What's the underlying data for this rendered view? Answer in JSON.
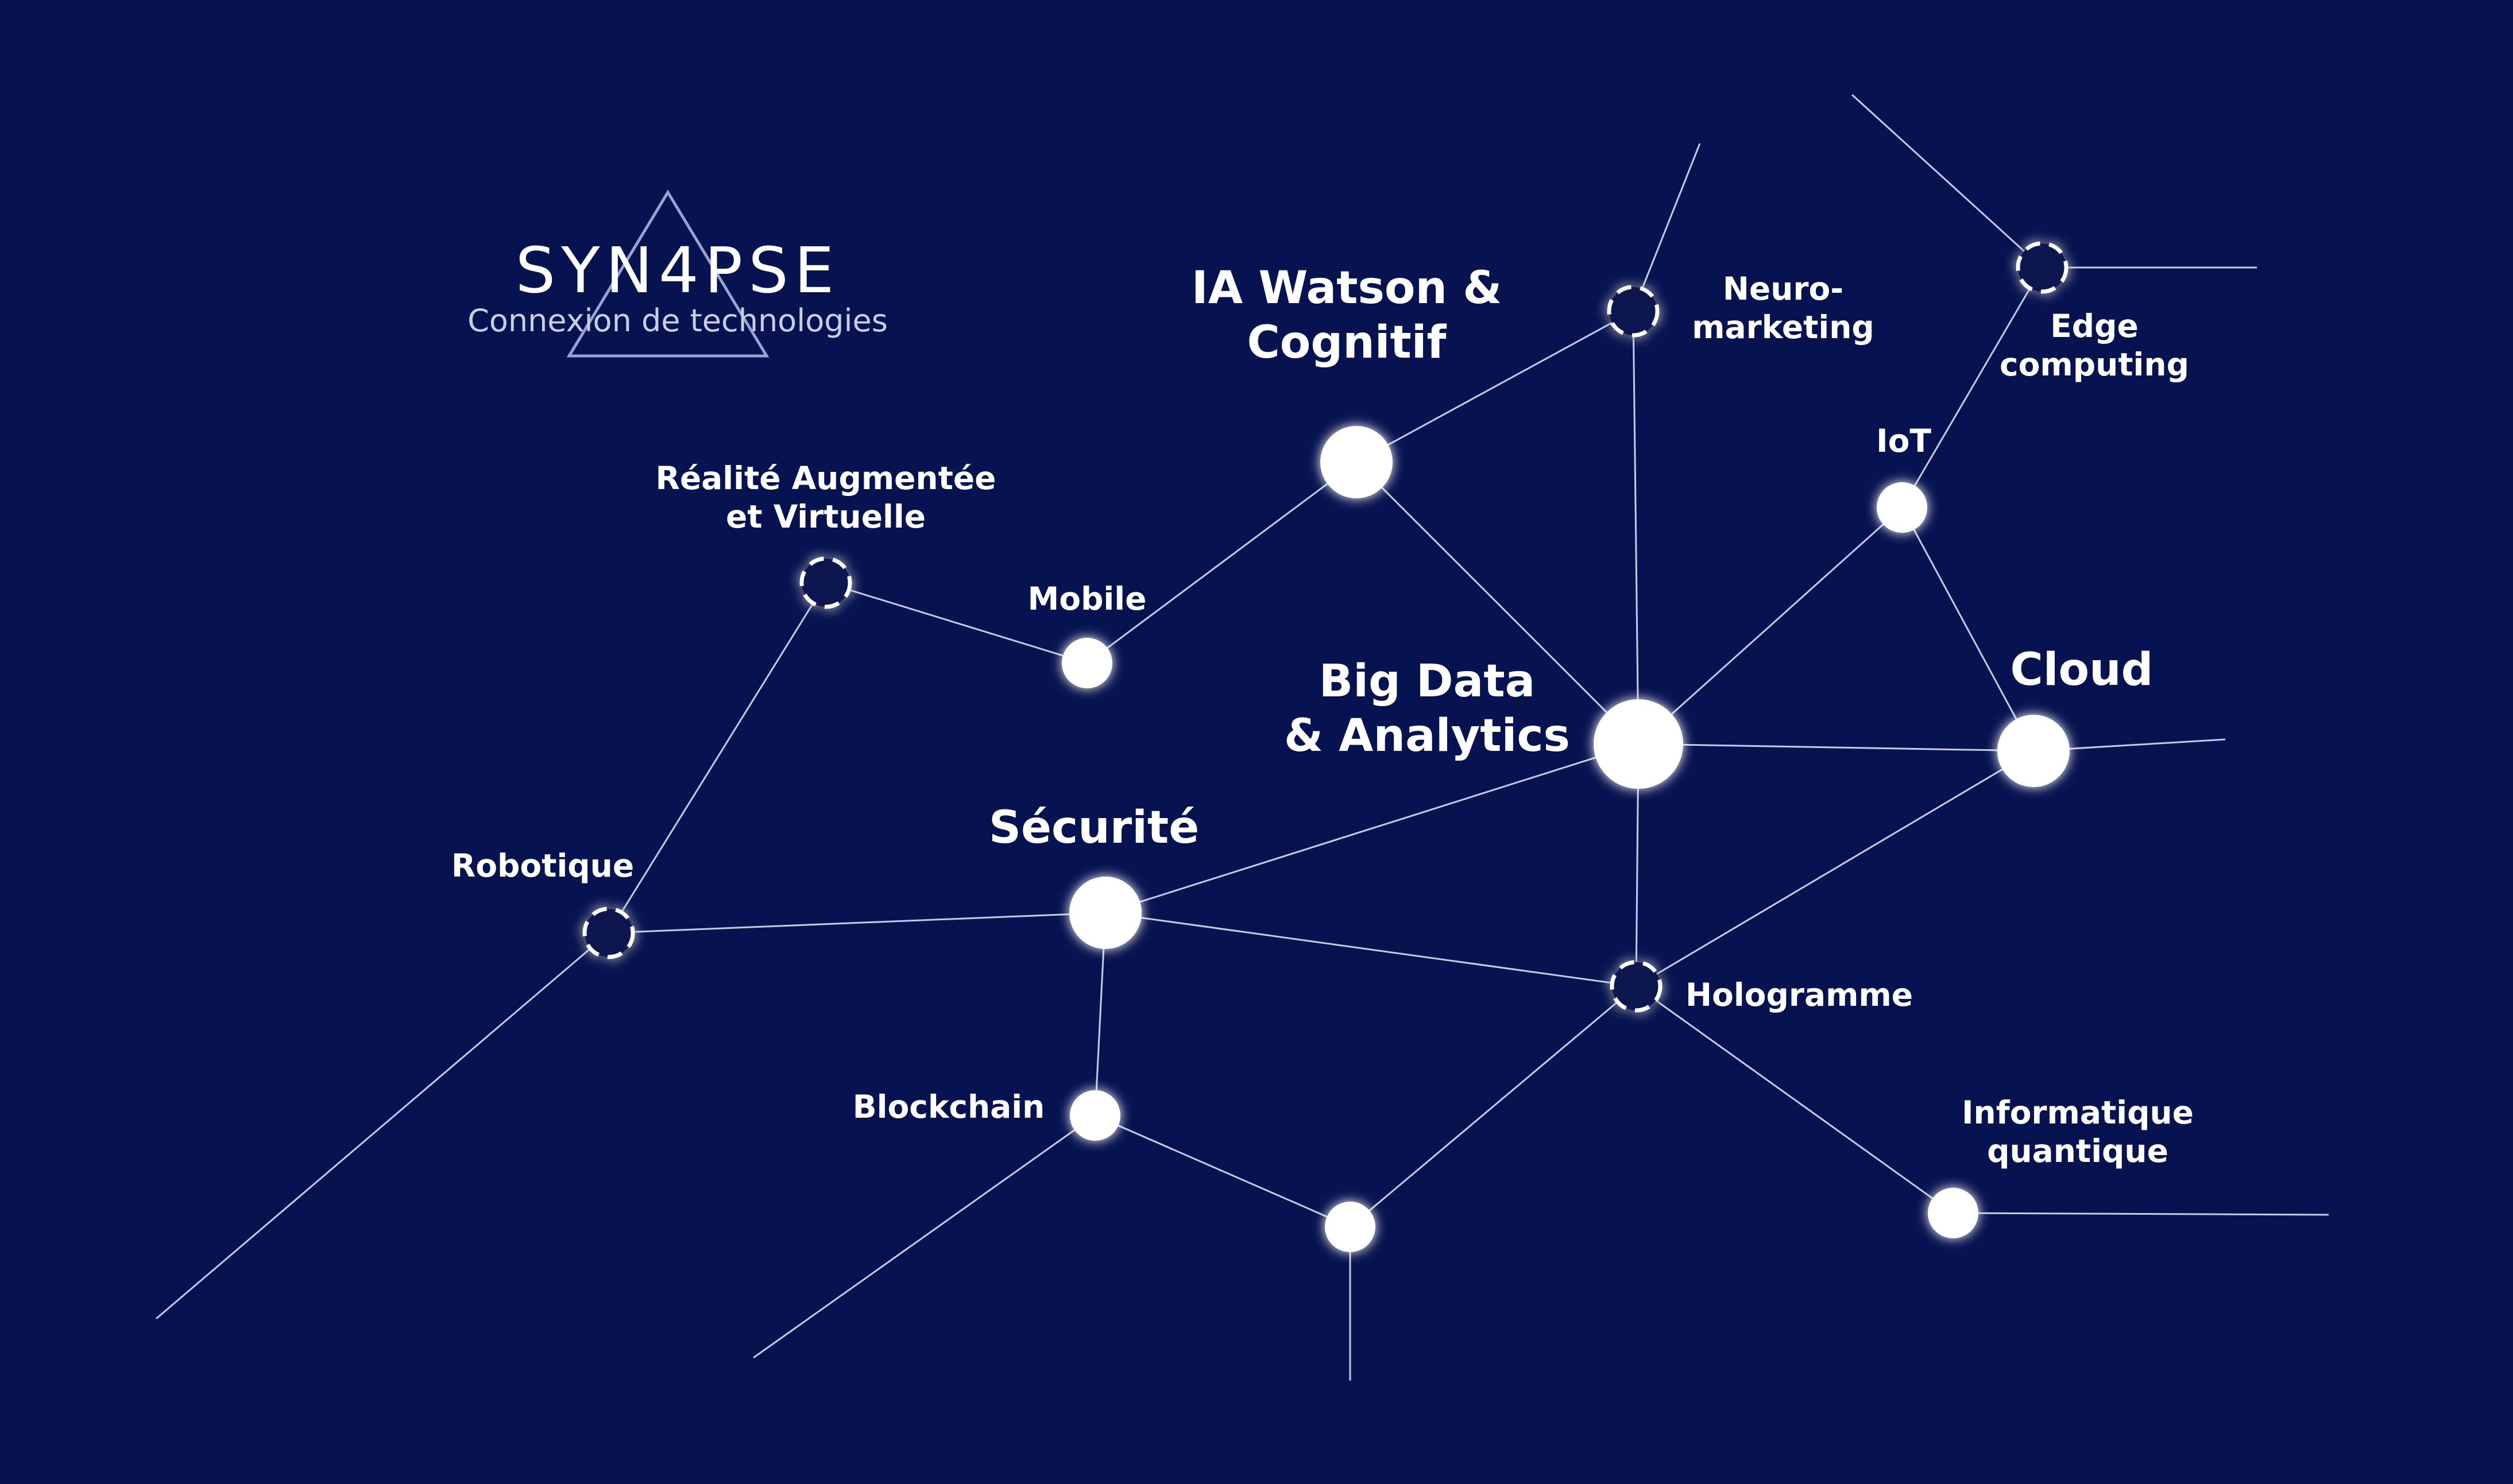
{
  "logo": {
    "wordmark": "SYN4PSE",
    "tagline": "Connexion de technologies"
  },
  "colors": {
    "background": "#071350",
    "node": "#ffffff",
    "edge": "#c6cbe4",
    "glow": "#aab4ff"
  },
  "nodes": [
    {
      "id": "ia-watson",
      "label": [
        "IA Watson &",
        "Cognitif"
      ],
      "style": "solid",
      "size": "large"
    },
    {
      "id": "big-data",
      "label": [
        "Big Data",
        "& Analytics"
      ],
      "style": "solid",
      "size": "xlarge"
    },
    {
      "id": "securite",
      "label": [
        "Sécurité"
      ],
      "style": "solid",
      "size": "large"
    },
    {
      "id": "cloud",
      "label": [
        "Cloud"
      ],
      "style": "solid",
      "size": "large"
    },
    {
      "id": "iot",
      "label": [
        "IoT"
      ],
      "style": "solid",
      "size": "small"
    },
    {
      "id": "mobile",
      "label": [
        "Mobile"
      ],
      "style": "solid",
      "size": "small"
    },
    {
      "id": "blockchain",
      "label": [
        "Blockchain"
      ],
      "style": "solid",
      "size": "small"
    },
    {
      "id": "unnamed-bottom",
      "label": [],
      "style": "solid",
      "size": "small"
    },
    {
      "id": "informatique-quantique",
      "label": [
        "Informatique",
        "quantique"
      ],
      "style": "solid",
      "size": "small"
    },
    {
      "id": "neuro-marketing",
      "label": [
        "Neuro-",
        "marketing"
      ],
      "style": "dashed",
      "size": "small"
    },
    {
      "id": "edge-computing",
      "label": [
        "Edge",
        "computing"
      ],
      "style": "dashed",
      "size": "small"
    },
    {
      "id": "realite-augmentee",
      "label": [
        "Réalité Augmentée",
        "et Virtuelle"
      ],
      "style": "dashed",
      "size": "small"
    },
    {
      "id": "robotique",
      "label": [
        "Robotique"
      ],
      "style": "dashed",
      "size": "small"
    },
    {
      "id": "hologramme",
      "label": [
        "Hologramme"
      ],
      "style": "dashed",
      "size": "small"
    }
  ],
  "edges": [
    [
      "ia-watson",
      "mobile"
    ],
    [
      "ia-watson",
      "neuro-marketing"
    ],
    [
      "ia-watson",
      "big-data"
    ],
    [
      "mobile",
      "realite-augmentee"
    ],
    [
      "realite-augmentee",
      "robotique"
    ],
    [
      "robotique",
      "securite"
    ],
    [
      "securite",
      "big-data"
    ],
    [
      "securite",
      "hologramme"
    ],
    [
      "securite",
      "blockchain"
    ],
    [
      "big-data",
      "neuro-marketing"
    ],
    [
      "big-data",
      "iot"
    ],
    [
      "big-data",
      "cloud"
    ],
    [
      "big-data",
      "hologramme"
    ],
    [
      "iot",
      "edge-computing"
    ],
    [
      "iot",
      "cloud"
    ],
    [
      "cloud",
      "hologramme"
    ],
    [
      "hologramme",
      "unnamed-bottom"
    ],
    [
      "hologramme",
      "informatique-quantique"
    ],
    [
      "blockchain",
      "unnamed-bottom"
    ]
  ]
}
